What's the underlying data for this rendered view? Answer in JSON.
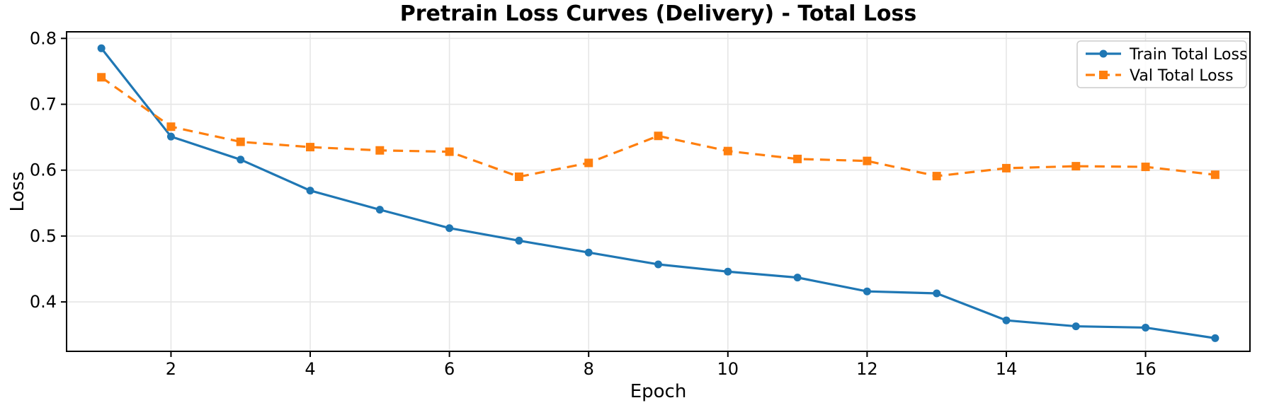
{
  "chart_data": {
    "type": "line",
    "title": "Pretrain Loss Curves (Delivery) - Total Loss",
    "xlabel": "Epoch",
    "ylabel": "Loss",
    "x": [
      1,
      2,
      3,
      4,
      5,
      6,
      7,
      8,
      9,
      10,
      11,
      12,
      13,
      14,
      15,
      16,
      17
    ],
    "series": [
      {
        "name": "Train Total Loss",
        "color": "#1f77b4",
        "linestyle": "solid",
        "marker": "circle",
        "values": [
          0.785,
          0.651,
          0.616,
          0.569,
          0.54,
          0.512,
          0.493,
          0.475,
          0.457,
          0.446,
          0.437,
          0.416,
          0.413,
          0.372,
          0.363,
          0.361,
          0.345
        ]
      },
      {
        "name": "Val Total Loss",
        "color": "#ff7f0e",
        "linestyle": "dashed",
        "marker": "square",
        "values": [
          0.741,
          0.666,
          0.643,
          0.635,
          0.63,
          0.628,
          0.59,
          0.611,
          0.652,
          0.629,
          0.617,
          0.614,
          0.591,
          0.603,
          0.606,
          0.605,
          0.593
        ]
      }
    ],
    "xticks": [
      2,
      4,
      6,
      8,
      10,
      12,
      14,
      16
    ],
    "yticks": [
      0.4,
      0.5,
      0.6,
      0.7,
      0.8
    ],
    "xlim": [
      0.5,
      17.5
    ],
    "ylim": [
      0.325,
      0.81
    ],
    "grid": true,
    "grid_color": "#e6e6e6",
    "axis_color": "#000000",
    "legend_position": "upper right",
    "legend_edge_color": "#cccccc"
  }
}
